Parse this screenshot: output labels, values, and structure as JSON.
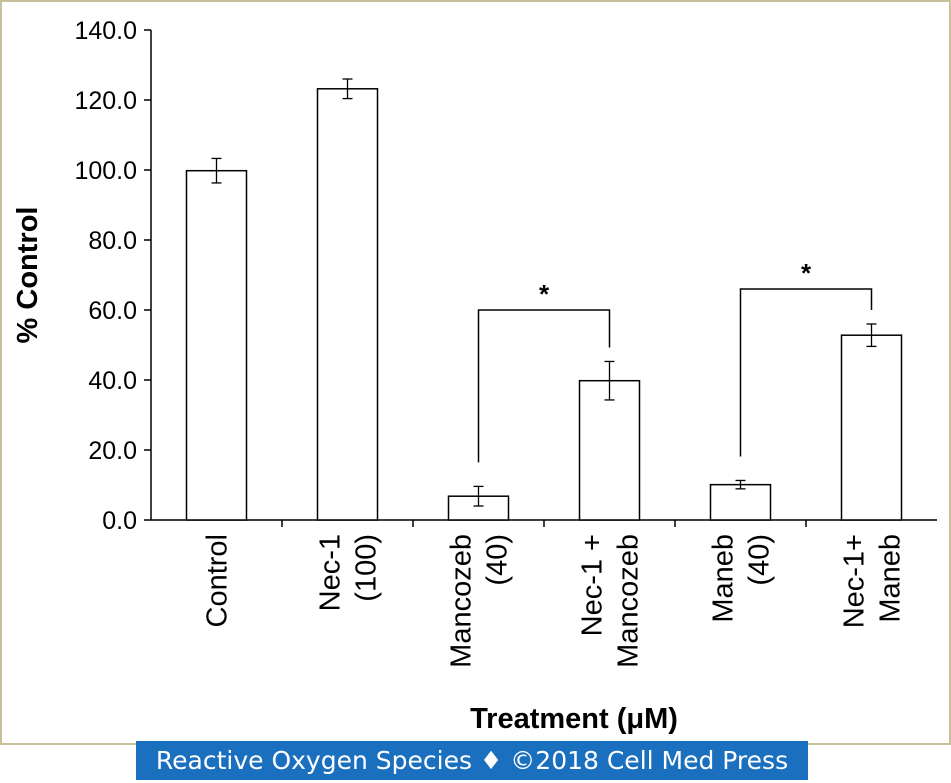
{
  "chart_data": {
    "type": "bar",
    "categories": [
      [
        "Control"
      ],
      [
        "Nec-1",
        "(100)"
      ],
      [
        "Mancozeb",
        "(40)"
      ],
      [
        "Nec-1 +",
        "Mancozeb"
      ],
      [
        "Maneb",
        "(40)"
      ],
      [
        "Nec-1+",
        "Maneb"
      ]
    ],
    "values": [
      99.8,
      123.2,
      6.8,
      39.8,
      10.1,
      52.8
    ],
    "errors": [
      3.5,
      2.8,
      2.8,
      5.5,
      1.2,
      3.2
    ],
    "ylabel": "% Control",
    "xlabel": "Treatment (μM)",
    "ylim": [
      0,
      140
    ],
    "yticks": [
      "0.0",
      "20.0",
      "40.0",
      "60.0",
      "80.0",
      "100.0",
      "120.0",
      "140.0"
    ],
    "tick_values": [
      0,
      20,
      40,
      60,
      80,
      100,
      120,
      140
    ],
    "significance": [
      {
        "from": 2,
        "to": 3,
        "label": "*",
        "level": 60
      },
      {
        "from": 4,
        "to": 5,
        "label": "*",
        "level": 66
      }
    ],
    "bar_color": "#ffffff",
    "stroke_color": "#000000"
  },
  "footer": {
    "text": "Reactive Oxygen Species ♦ ©2018 Cell Med Press",
    "background": "#1a6fbf"
  }
}
